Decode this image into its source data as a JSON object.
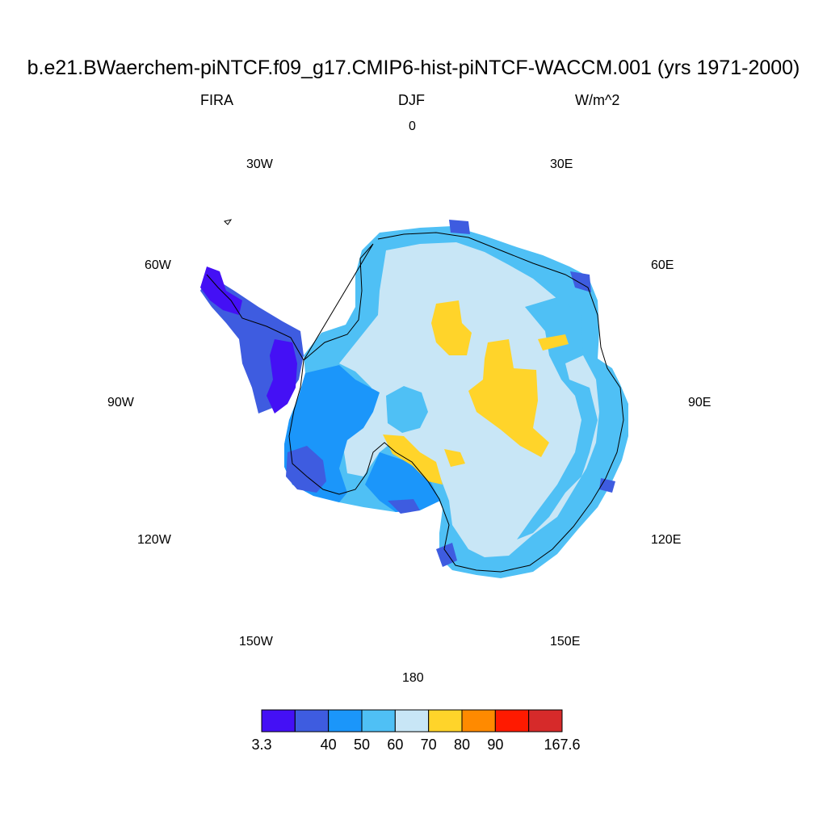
{
  "title": "b.e21.BWaerchem-piNTCF.f09_g17.CMIP6-hist-piNTCF-WACCM.001 (yrs 1971-2000)",
  "subtitle_left": "FIRA",
  "subtitle_center": "DJF",
  "subtitle_right": "W/m^2",
  "longitude_labels": {
    "lon_0": "0",
    "lon_30e": "30E",
    "lon_60e": "60E",
    "lon_90e": "90E",
    "lon_120e": "120E",
    "lon_150e": "150E",
    "lon_180": "180",
    "lon_150w": "150W",
    "lon_120w": "120W",
    "lon_90w": "90W",
    "lon_60w": "60W",
    "lon_30w": "30W"
  },
  "colorbar": {
    "colors": [
      "#4410f5",
      "#3e5ce0",
      "#1b96fa",
      "#4fc0f5",
      "#c8e6f6",
      "#ffd42a",
      "#ff8a00",
      "#ff1a00",
      "#d62a2a"
    ],
    "labels": [
      "3.3",
      "40",
      "50",
      "60",
      "70",
      "80",
      "90",
      "167.6"
    ]
  },
  "chart_data": {
    "type": "heatmap",
    "title": "b.e21.BWaerchem-piNTCF.f09_g17.CMIP6-hist-piNTCF-WACCM.001 (yrs 1971-2000)",
    "variable": "FIRA",
    "season": "DJF",
    "units": "W/m^2",
    "projection": "south polar stereographic",
    "region": "Antarctica",
    "contour_levels": [
      3.3,
      40,
      50,
      60,
      70,
      80,
      90,
      167.6
    ],
    "dominant_interior_range": [
      60,
      70
    ],
    "plateau_patches_range": [
      70,
      80
    ],
    "coastal_range": [
      40,
      60
    ],
    "peninsula_range": [
      3.3,
      40
    ]
  }
}
